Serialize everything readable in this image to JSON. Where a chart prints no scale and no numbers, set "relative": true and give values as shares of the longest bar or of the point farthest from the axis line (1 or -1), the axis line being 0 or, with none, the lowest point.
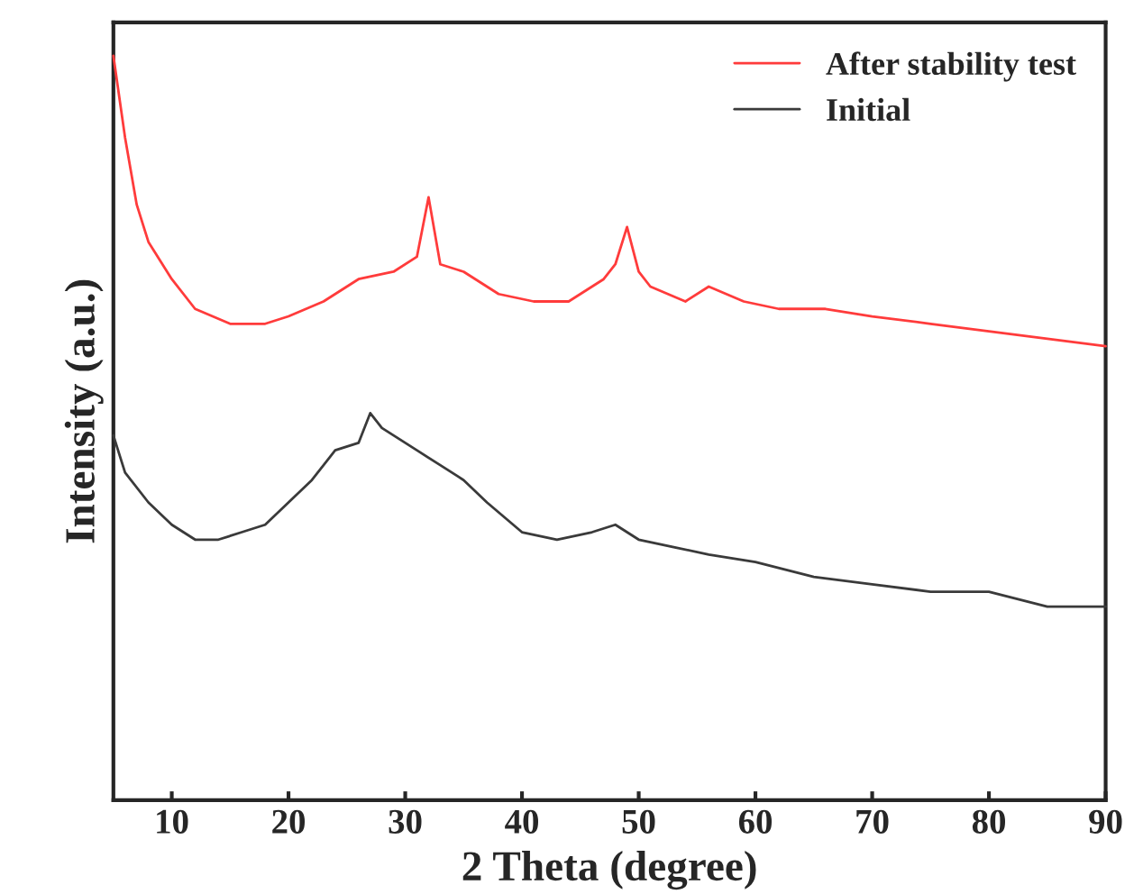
{
  "chart_data": {
    "type": "line",
    "relative": true,
    "xlabel": "2 Theta (degree)",
    "ylabel": "Intensity (a.u.)",
    "xlim": [
      5,
      90
    ],
    "xticks": [
      10,
      20,
      30,
      40,
      50,
      60,
      70,
      80,
      90
    ],
    "tick_labels": "x",
    "grid": false,
    "legend": "top right",
    "marker": "none",
    "line_style": "solid",
    "series": [
      {
        "name": "After stability test",
        "color": "#ff3b3b",
        "x": [
          5,
          6,
          7,
          8,
          10,
          12,
          15,
          18,
          20,
          23,
          26,
          29,
          31,
          32,
          33,
          35,
          38,
          41,
          44,
          47,
          48,
          49,
          50,
          51,
          54,
          56,
          59,
          62,
          66,
          70,
          75,
          80,
          85,
          90
        ],
        "values": [
          1.0,
          0.89,
          0.8,
          0.75,
          0.7,
          0.66,
          0.64,
          0.64,
          0.65,
          0.67,
          0.7,
          0.71,
          0.73,
          0.81,
          0.72,
          0.71,
          0.68,
          0.67,
          0.67,
          0.7,
          0.72,
          0.77,
          0.71,
          0.69,
          0.67,
          0.69,
          0.67,
          0.66,
          0.66,
          0.65,
          0.64,
          0.63,
          0.62,
          0.61
        ]
      },
      {
        "name": "Initial",
        "color": "#3a3a3a",
        "x": [
          5,
          6,
          8,
          10,
          12,
          14,
          16,
          18,
          20,
          22,
          24,
          26,
          27,
          28,
          29,
          31,
          33,
          35,
          37,
          40,
          43,
          46,
          48,
          50,
          53,
          56,
          60,
          65,
          70,
          75,
          80,
          85,
          90
        ],
        "values": [
          0.49,
          0.44,
          0.4,
          0.37,
          0.35,
          0.35,
          0.36,
          0.37,
          0.4,
          0.43,
          0.47,
          0.48,
          0.52,
          0.5,
          0.49,
          0.47,
          0.45,
          0.43,
          0.4,
          0.36,
          0.35,
          0.36,
          0.37,
          0.35,
          0.34,
          0.33,
          0.32,
          0.3,
          0.29,
          0.28,
          0.28,
          0.26,
          0.26
        ]
      }
    ]
  }
}
